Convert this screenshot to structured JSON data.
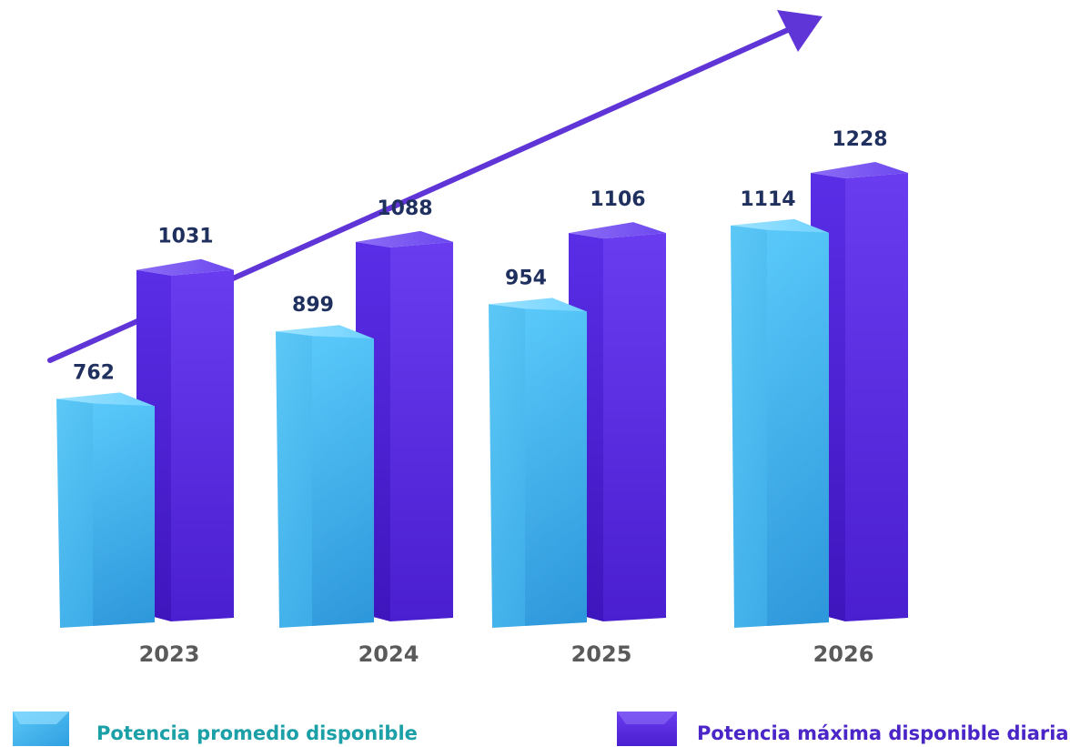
{
  "colors": {
    "series_1": "#3fb4ee",
    "series_2": "#5a2ee0",
    "value_label": "#1f2f5e",
    "year_label": "#5a5a5a",
    "legend_1_text": "#1aa0a6",
    "legend_2_text": "#4a25c7",
    "arrow": "#6035d8"
  },
  "chart_data": {
    "type": "bar",
    "categories": [
      "2023",
      "2024",
      "2025",
      "2026"
    ],
    "series": [
      {
        "name": "Potencia promedio disponible",
        "values": [
          762,
          899,
          954,
          1114
        ]
      },
      {
        "name": "Potencia máxima disponible diaria",
        "values": [
          1031,
          1088,
          1106,
          1228
        ]
      }
    ],
    "data_labels": true,
    "trend_arrow": true,
    "legend_position": "bottom",
    "grid": false
  }
}
